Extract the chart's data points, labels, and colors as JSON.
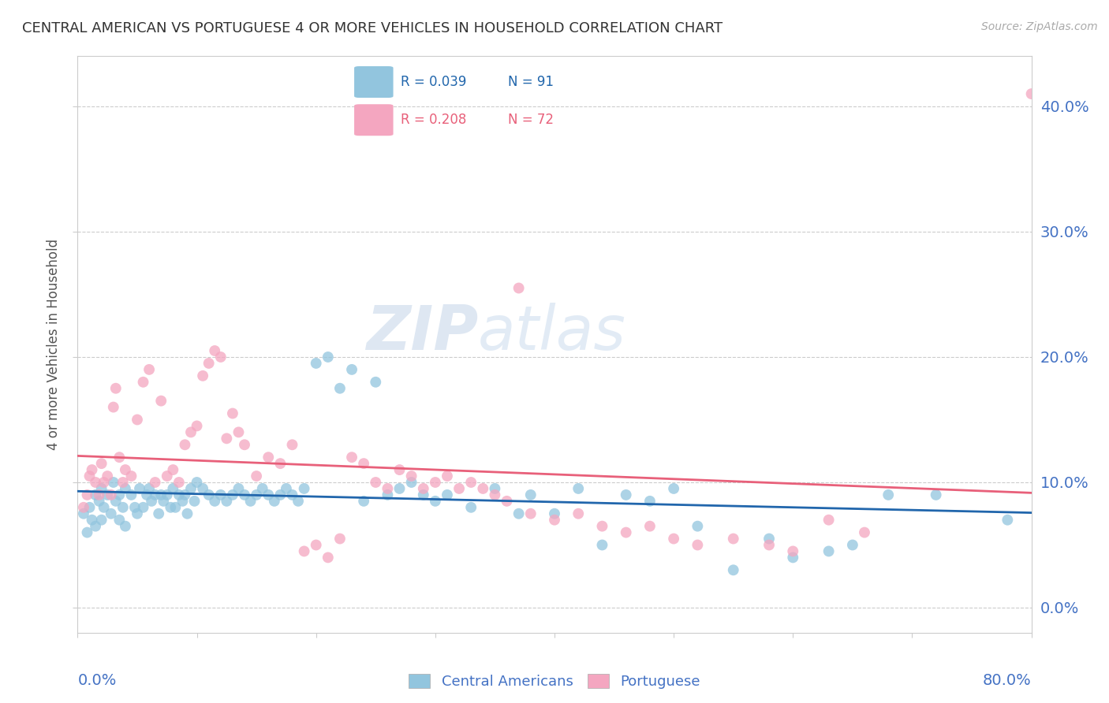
{
  "title": "CENTRAL AMERICAN VS PORTUGUESE 4 OR MORE VEHICLES IN HOUSEHOLD CORRELATION CHART",
  "source": "Source: ZipAtlas.com",
  "ylabel": "4 or more Vehicles in Household",
  "xlim": [
    0.0,
    80.0
  ],
  "ylim": [
    -2.0,
    44.0
  ],
  "yticks": [
    0.0,
    10.0,
    20.0,
    30.0,
    40.0
  ],
  "xticks": [
    0.0,
    10.0,
    20.0,
    30.0,
    40.0,
    50.0,
    60.0,
    70.0,
    80.0
  ],
  "blue_color": "#92c5de",
  "pink_color": "#f4a6c0",
  "blue_line_color": "#2166ac",
  "pink_line_color": "#e8607a",
  "axis_label_color": "#4472c4",
  "watermark_color": "#dce8f5",
  "blue_scatter_x": [
    0.5,
    0.8,
    1.0,
    1.2,
    1.5,
    1.5,
    1.8,
    2.0,
    2.0,
    2.2,
    2.5,
    2.8,
    3.0,
    3.2,
    3.5,
    3.5,
    3.8,
    4.0,
    4.0,
    4.5,
    4.8,
    5.0,
    5.2,
    5.5,
    5.8,
    6.0,
    6.2,
    6.5,
    6.8,
    7.0,
    7.2,
    7.5,
    7.8,
    8.0,
    8.2,
    8.5,
    8.8,
    9.0,
    9.2,
    9.5,
    9.8,
    10.0,
    10.5,
    11.0,
    11.5,
    12.0,
    12.5,
    13.0,
    13.5,
    14.0,
    14.5,
    15.0,
    15.5,
    16.0,
    16.5,
    17.0,
    17.5,
    18.0,
    18.5,
    19.0,
    20.0,
    21.0,
    22.0,
    23.0,
    24.0,
    25.0,
    26.0,
    27.0,
    28.0,
    29.0,
    30.0,
    31.0,
    33.0,
    35.0,
    37.0,
    38.0,
    40.0,
    42.0,
    44.0,
    46.0,
    48.0,
    50.0,
    52.0,
    55.0,
    58.0,
    60.0,
    63.0,
    65.0,
    68.0,
    72.0,
    78.0
  ],
  "blue_scatter_y": [
    7.5,
    6.0,
    8.0,
    7.0,
    9.0,
    6.5,
    8.5,
    9.5,
    7.0,
    8.0,
    9.0,
    7.5,
    10.0,
    8.5,
    9.0,
    7.0,
    8.0,
    9.5,
    6.5,
    9.0,
    8.0,
    7.5,
    9.5,
    8.0,
    9.0,
    9.5,
    8.5,
    9.0,
    7.5,
    9.0,
    8.5,
    9.0,
    8.0,
    9.5,
    8.0,
    9.0,
    8.5,
    9.0,
    7.5,
    9.5,
    8.5,
    10.0,
    9.5,
    9.0,
    8.5,
    9.0,
    8.5,
    9.0,
    9.5,
    9.0,
    8.5,
    9.0,
    9.5,
    9.0,
    8.5,
    9.0,
    9.5,
    9.0,
    8.5,
    9.5,
    19.5,
    20.0,
    17.5,
    19.0,
    8.5,
    18.0,
    9.0,
    9.5,
    10.0,
    9.0,
    8.5,
    9.0,
    8.0,
    9.5,
    7.5,
    9.0,
    7.5,
    9.5,
    5.0,
    9.0,
    8.5,
    9.5,
    6.5,
    3.0,
    5.5,
    4.0,
    4.5,
    5.0,
    9.0,
    9.0,
    7.0
  ],
  "pink_scatter_x": [
    0.5,
    0.8,
    1.0,
    1.2,
    1.5,
    1.8,
    2.0,
    2.2,
    2.5,
    2.8,
    3.0,
    3.2,
    3.5,
    3.8,
    4.0,
    4.5,
    5.0,
    5.5,
    6.0,
    6.5,
    7.0,
    7.5,
    8.0,
    8.5,
    9.0,
    9.5,
    10.0,
    10.5,
    11.0,
    11.5,
    12.0,
    12.5,
    13.0,
    13.5,
    14.0,
    15.0,
    16.0,
    17.0,
    18.0,
    19.0,
    20.0,
    21.0,
    22.0,
    23.0,
    24.0,
    25.0,
    26.0,
    27.0,
    28.0,
    29.0,
    30.0,
    31.0,
    32.0,
    33.0,
    34.0,
    35.0,
    36.0,
    37.0,
    38.0,
    40.0,
    42.0,
    44.0,
    46.0,
    48.0,
    50.0,
    52.0,
    55.0,
    58.0,
    60.0,
    63.0,
    66.0,
    80.0
  ],
  "pink_scatter_y": [
    8.0,
    9.0,
    10.5,
    11.0,
    10.0,
    9.0,
    11.5,
    10.0,
    10.5,
    9.0,
    16.0,
    17.5,
    12.0,
    10.0,
    11.0,
    10.5,
    15.0,
    18.0,
    19.0,
    10.0,
    16.5,
    10.5,
    11.0,
    10.0,
    13.0,
    14.0,
    14.5,
    18.5,
    19.5,
    20.5,
    20.0,
    13.5,
    15.5,
    14.0,
    13.0,
    10.5,
    12.0,
    11.5,
    13.0,
    4.5,
    5.0,
    4.0,
    5.5,
    12.0,
    11.5,
    10.0,
    9.5,
    11.0,
    10.5,
    9.5,
    10.0,
    10.5,
    9.5,
    10.0,
    9.5,
    9.0,
    8.5,
    25.5,
    7.5,
    7.0,
    7.5,
    6.5,
    6.0,
    6.5,
    5.5,
    5.0,
    5.5,
    5.0,
    4.5,
    7.0,
    6.0,
    41.0
  ]
}
